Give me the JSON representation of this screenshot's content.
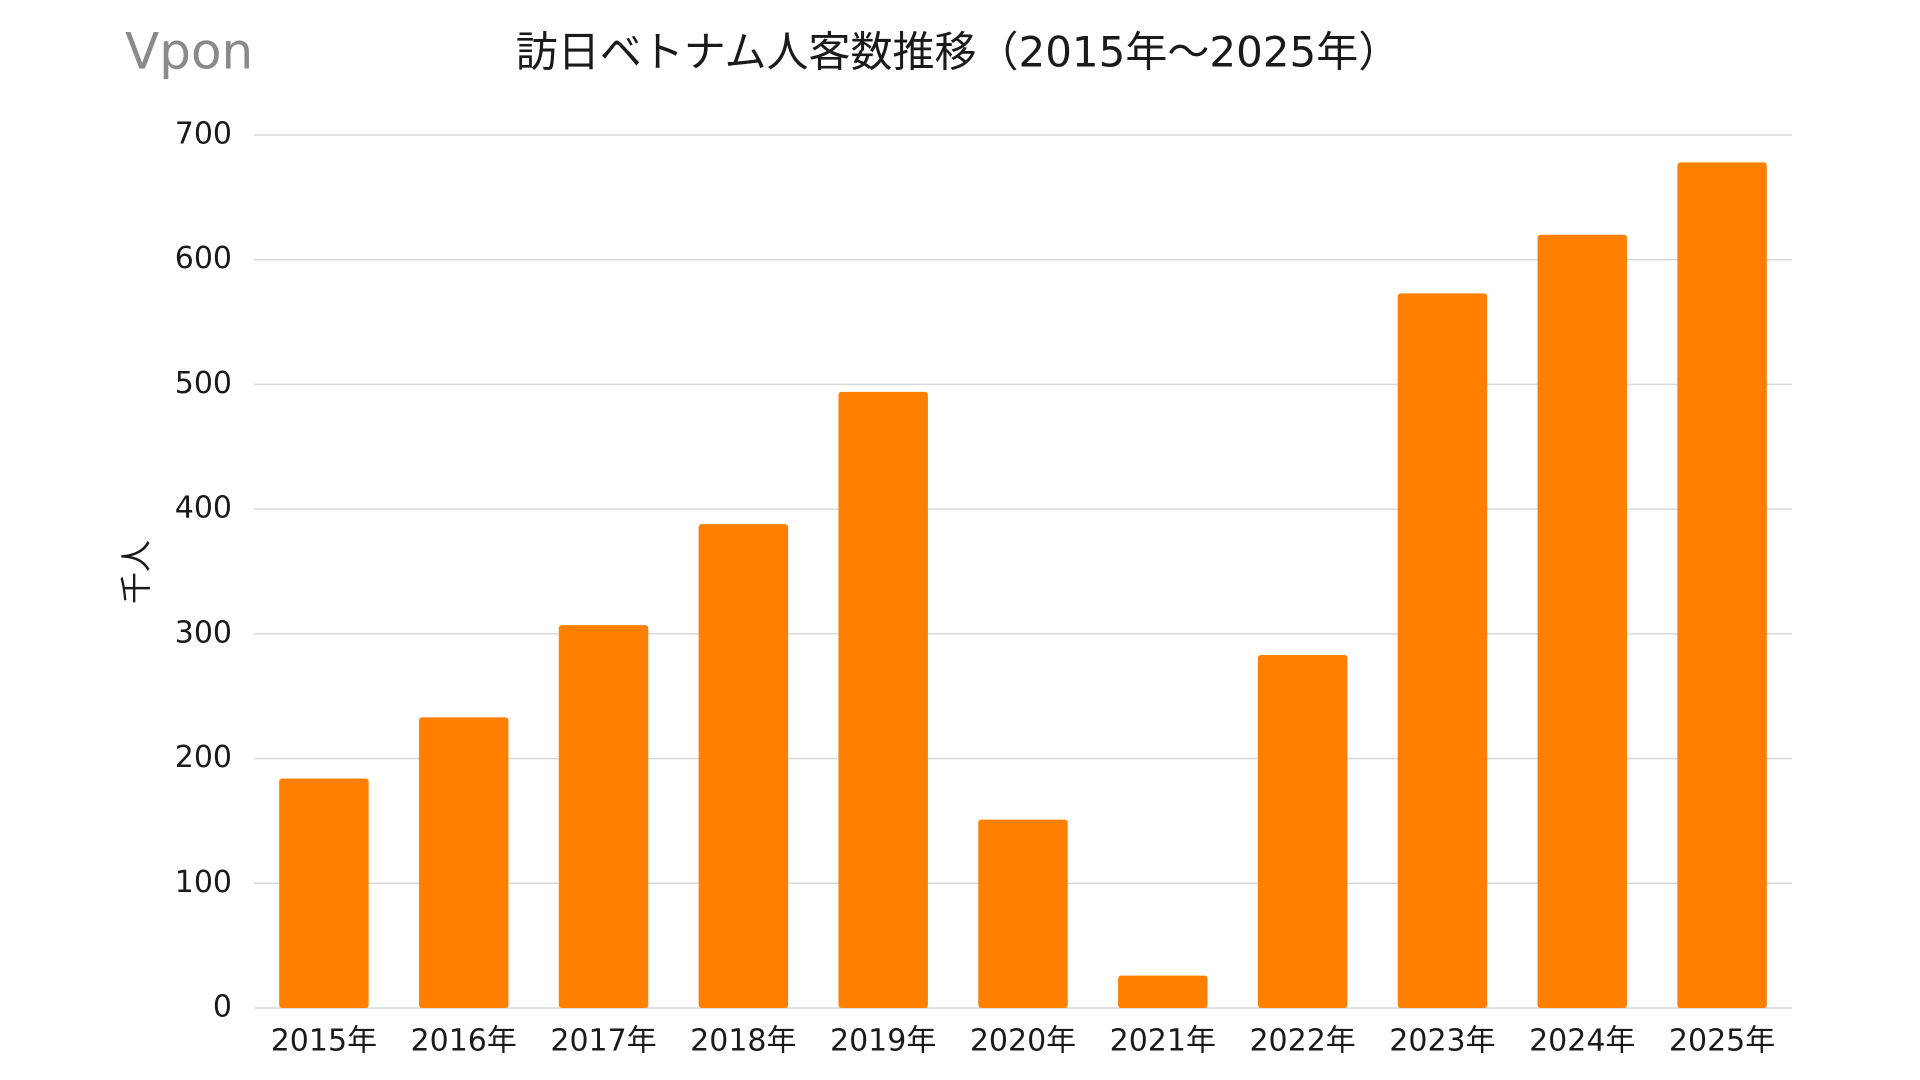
{
  "logo": "Vpon",
  "chart_data": {
    "type": "bar",
    "title": "訪日ベトナム人客数推移（2015年～2025年）",
    "y_label": "千人",
    "categories": [
      "2015年",
      "2016年",
      "2017年",
      "2018年",
      "2019年",
      "2020年",
      "2021年",
      "2022年",
      "2023年",
      "2024年",
      "2025年"
    ],
    "values": [
      184,
      233,
      307,
      388,
      494,
      151,
      26,
      283,
      573,
      620,
      678
    ],
    "color": "#ff8000",
    "ylim": [
      0,
      700
    ],
    "yticks": [
      0,
      100,
      200,
      300,
      400,
      500,
      600,
      700
    ],
    "grid": true
  }
}
